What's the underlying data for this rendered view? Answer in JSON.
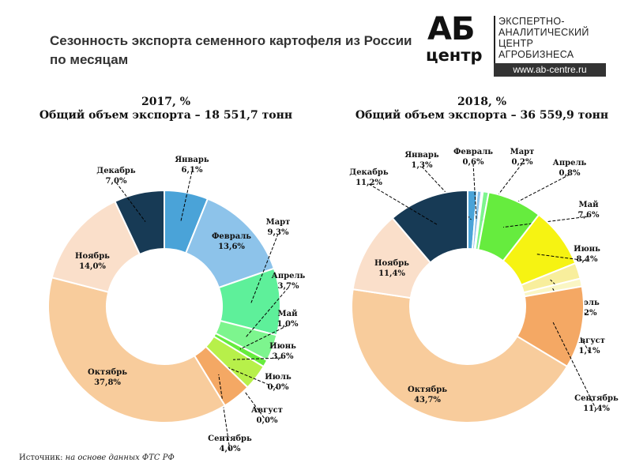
{
  "page_title": "Сезонность экспорта семенного картофеля из России по месяцам",
  "logo": {
    "ab": "АБ",
    "centr": "центр",
    "lines": [
      "ЭКСПЕРТНО-",
      "АНАЛИТИЧЕСКИЙ",
      "ЦЕНТР",
      "АГРОБИЗНЕСА"
    ],
    "url": "www.ab-centre.ru"
  },
  "source": {
    "label": "Источник:",
    "text": "на основе данных ФТС РФ"
  },
  "chart_data": [
    {
      "type": "pie",
      "title": "2017, %",
      "subtitle": "Общий объем экспорта – 18 551,7 тонн",
      "categories": [
        "Январь",
        "Февраль",
        "Март",
        "Апрель",
        "Май",
        "Июнь",
        "Июль",
        "Август",
        "Сентябрь",
        "Октябрь",
        "Ноябрь",
        "Декабрь"
      ],
      "values": [
        6.1,
        13.6,
        9.3,
        3.7,
        1.0,
        3.6,
        0.0,
        0.0,
        4.0,
        37.8,
        14.0,
        7.0
      ],
      "labels": [
        "6,1%",
        "13,6%",
        "9,3%",
        "3,7%",
        "1,0%",
        "3,6%",
        "0,0%",
        "0,0%",
        "4,0%",
        "37,8%",
        "14,0%",
        "7,0%"
      ],
      "colors": [
        "#4aa3d8",
        "#8dc3ea",
        "#5ef09a",
        "#7df58e",
        "#66ec3e",
        "#b7f04a",
        "#f6f312",
        "#f8ee9c",
        "#f4a864",
        "#f8cc9c",
        "#fadfca",
        "#173a55"
      ],
      "legend": "none"
    },
    {
      "type": "pie",
      "title": "2018, %",
      "subtitle": "Общий объем экспорта – 36 559,9 тонн",
      "categories": [
        "Январь",
        "Февраль",
        "Март",
        "Апрель",
        "Май",
        "Июнь",
        "Июль",
        "Август",
        "Сентябрь",
        "Октябрь",
        "Ноябрь",
        "Декабрь"
      ],
      "values": [
        1.3,
        0.6,
        0.2,
        0.8,
        7.6,
        8.4,
        2.2,
        1.1,
        11.4,
        43.7,
        11.4,
        11.2
      ],
      "labels": [
        "1,3%",
        "0,6%",
        "0,2%",
        "0,8%",
        "7,6%",
        "8,4%",
        "2,2%",
        "1,1%",
        "11,4%",
        "43,7%",
        "11,4%",
        "11,2%"
      ],
      "colors": [
        "#4aa3d8",
        "#8dc3ea",
        "#5ef09a",
        "#7df58e",
        "#66ec3e",
        "#f6f312",
        "#f8ee9c",
        "#faf6c4",
        "#f4a864",
        "#f8cc9c",
        "#fadfca",
        "#173a55"
      ],
      "legend": "none"
    }
  ]
}
